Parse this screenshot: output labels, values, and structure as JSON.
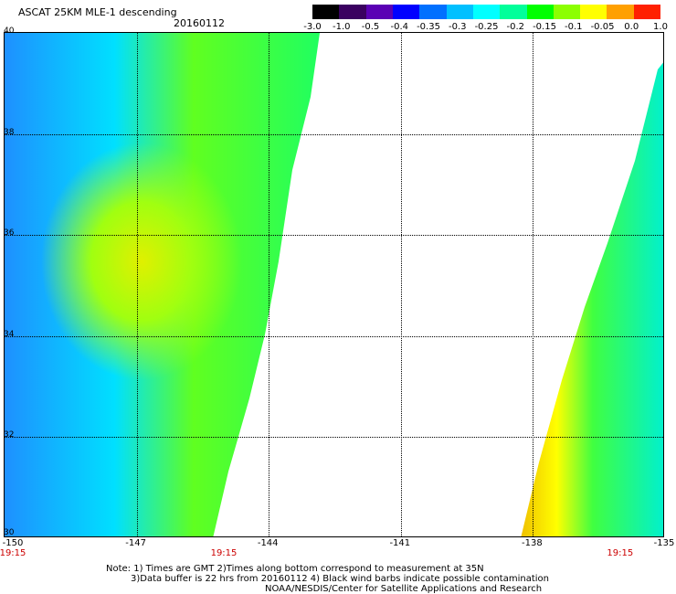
{
  "title": "ASCAT 25KM MLE-1 descending",
  "date": "20160112",
  "colorbar": {
    "labels": [
      "-3.0",
      "-1.0",
      "-0.5",
      "-0.4",
      "-0.35",
      "-0.3",
      "-0.25",
      "-0.2",
      "-0.15",
      "-0.1",
      "-0.05",
      "0.0",
      "1.0"
    ],
    "colors": [
      "#000000",
      "#3a0060",
      "#5a00b4",
      "#0000ff",
      "#0070ff",
      "#00c0ff",
      "#00ffff",
      "#00ff9a",
      "#00ff00",
      "#8cff00",
      "#ffff00",
      "#ffa000",
      "#ff2000"
    ]
  },
  "map": {
    "lon_ticks": [
      "-150",
      "-147",
      "-144",
      "-141",
      "-138",
      "-135"
    ],
    "lat_ticks": [
      "40",
      "38",
      "36",
      "34",
      "32",
      "30"
    ],
    "lon_range": [
      -150,
      -135
    ],
    "lat_range": [
      30,
      40
    ],
    "times": [
      {
        "label": "19:15",
        "lon": -150
      },
      {
        "label": "19:15",
        "lon": -145
      },
      {
        "label": "19:15",
        "lon": -136
      }
    ]
  },
  "notes": {
    "line1": "Note: 1) Times are GMT 2)Times along bottom correspond to measurement at 35N",
    "line2": "3)Data buffer is 22 hrs from 20160112 4) Black wind barbs indicate possible contamination",
    "line3": "NOAA/NESDIS/Center for Satellite Applications and Research"
  }
}
